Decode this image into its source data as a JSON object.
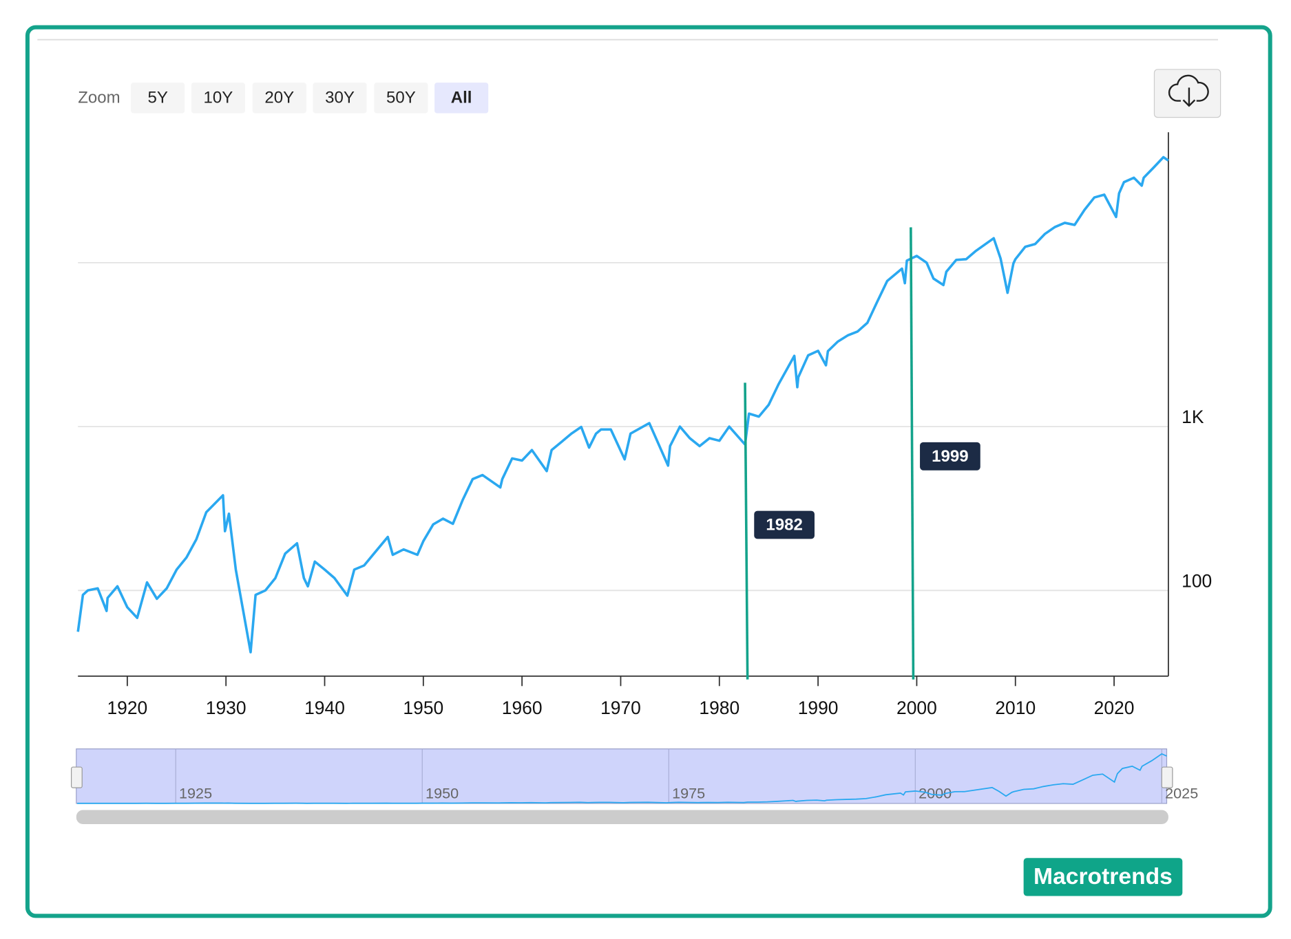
{
  "zoom": {
    "label": "Zoom",
    "buttons": [
      "5Y",
      "10Y",
      "20Y",
      "30Y",
      "50Y",
      "All"
    ],
    "active": "All"
  },
  "chart_data": {
    "type": "line",
    "log_scale": true,
    "color": "#2aa8f0",
    "grid": true,
    "x": [
      1915,
      1915.5,
      1916,
      1917,
      1917.9,
      1918,
      1919,
      1920,
      1921,
      1922,
      1923,
      1924,
      1925,
      1926,
      1927,
      1928,
      1929.7,
      1929.9,
      1930.3,
      1931,
      1932.5,
      1933,
      1934,
      1935,
      1936,
      1937.2,
      1937.9,
      1938.3,
      1939,
      1940,
      1941,
      1942.3,
      1943,
      1944,
      1945,
      1946.4,
      1946.9,
      1948,
      1949.4,
      1950,
      1951,
      1952,
      1953,
      1954,
      1955,
      1956,
      1957.8,
      1958,
      1959,
      1960,
      1961,
      1962.5,
      1963,
      1964,
      1965,
      1966,
      1966.8,
      1967.5,
      1968,
      1969,
      1970.4,
      1971,
      1972.9,
      1974.8,
      1975,
      1976,
      1977,
      1978,
      1979,
      1980,
      1981,
      1982.6,
      1983,
      1984,
      1985,
      1986,
      1987.6,
      1987.9,
      1988,
      1989,
      1990,
      1990.8,
      1991,
      1992,
      1993,
      1994,
      1995,
      1996,
      1997,
      1998.5,
      1998.8,
      1999,
      2000,
      2001,
      2001.7,
      2002.7,
      2003,
      2004,
      2005,
      2006,
      2007.8,
      2008.5,
      2009.2,
      2009.8,
      2010,
      2011,
      2012,
      2013,
      2014,
      2015,
      2016,
      2017,
      2018,
      2019,
      2020.2,
      2020.5,
      2021,
      2022,
      2022.8,
      2023,
      2024,
      2025,
      2025.5
    ],
    "values": [
      56,
      94,
      100,
      103,
      75,
      90,
      106,
      79,
      68,
      112,
      89,
      103,
      134,
      159,
      205,
      300,
      381,
      230,
      294,
      134,
      42,
      94,
      100,
      119,
      168,
      194,
      119,
      106,
      150,
      134,
      119,
      93,
      134,
      142,
      168,
      212,
      165,
      178,
      165,
      200,
      253,
      274,
      255,
      358,
      478,
      506,
      425,
      478,
      639,
      620,
      719,
      535,
      719,
      806,
      906,
      995,
      744,
      906,
      960,
      960,
      631,
      906,
      1050,
      578,
      760,
      1000,
      850,
      760,
      850,
      820,
      1000,
      777,
      1200,
      1150,
      1359,
      1816,
      2700,
      1740,
      2000,
      2720,
      2900,
      2365,
      2885,
      3300,
      3600,
      3800,
      4300,
      5780,
      7730,
      9200,
      7500,
      10300,
      11000,
      10000,
      8000,
      7300,
      8800,
      10400,
      10500,
      11800,
      14100,
      10600,
      6550,
      9900,
      10500,
      12500,
      13000,
      15000,
      16500,
      17500,
      17000,
      21000,
      25000,
      26000,
      19000,
      26500,
      31000,
      33000,
      29500,
      33000,
      38000,
      44000,
      42000
    ],
    "xlim": [
      1915,
      2025.5
    ],
    "xticks": [
      1920,
      1930,
      1940,
      1950,
      1960,
      1970,
      1980,
      1990,
      2000,
      2010,
      2020
    ],
    "ylim": [
      30,
      62500
    ],
    "yticks": [
      {
        "value": 100,
        "label": "100"
      },
      {
        "value": 1000,
        "label": "1K"
      },
      {
        "value": 10000,
        "label": null
      }
    ],
    "annotations": [
      {
        "x": 1982.6,
        "label": "1982"
      },
      {
        "x": 1999.4,
        "label": "1999"
      }
    ],
    "navigator": {
      "xticks": [
        1925,
        1950,
        1975,
        2000,
        2025
      ]
    }
  },
  "brand": "Macrotrends"
}
